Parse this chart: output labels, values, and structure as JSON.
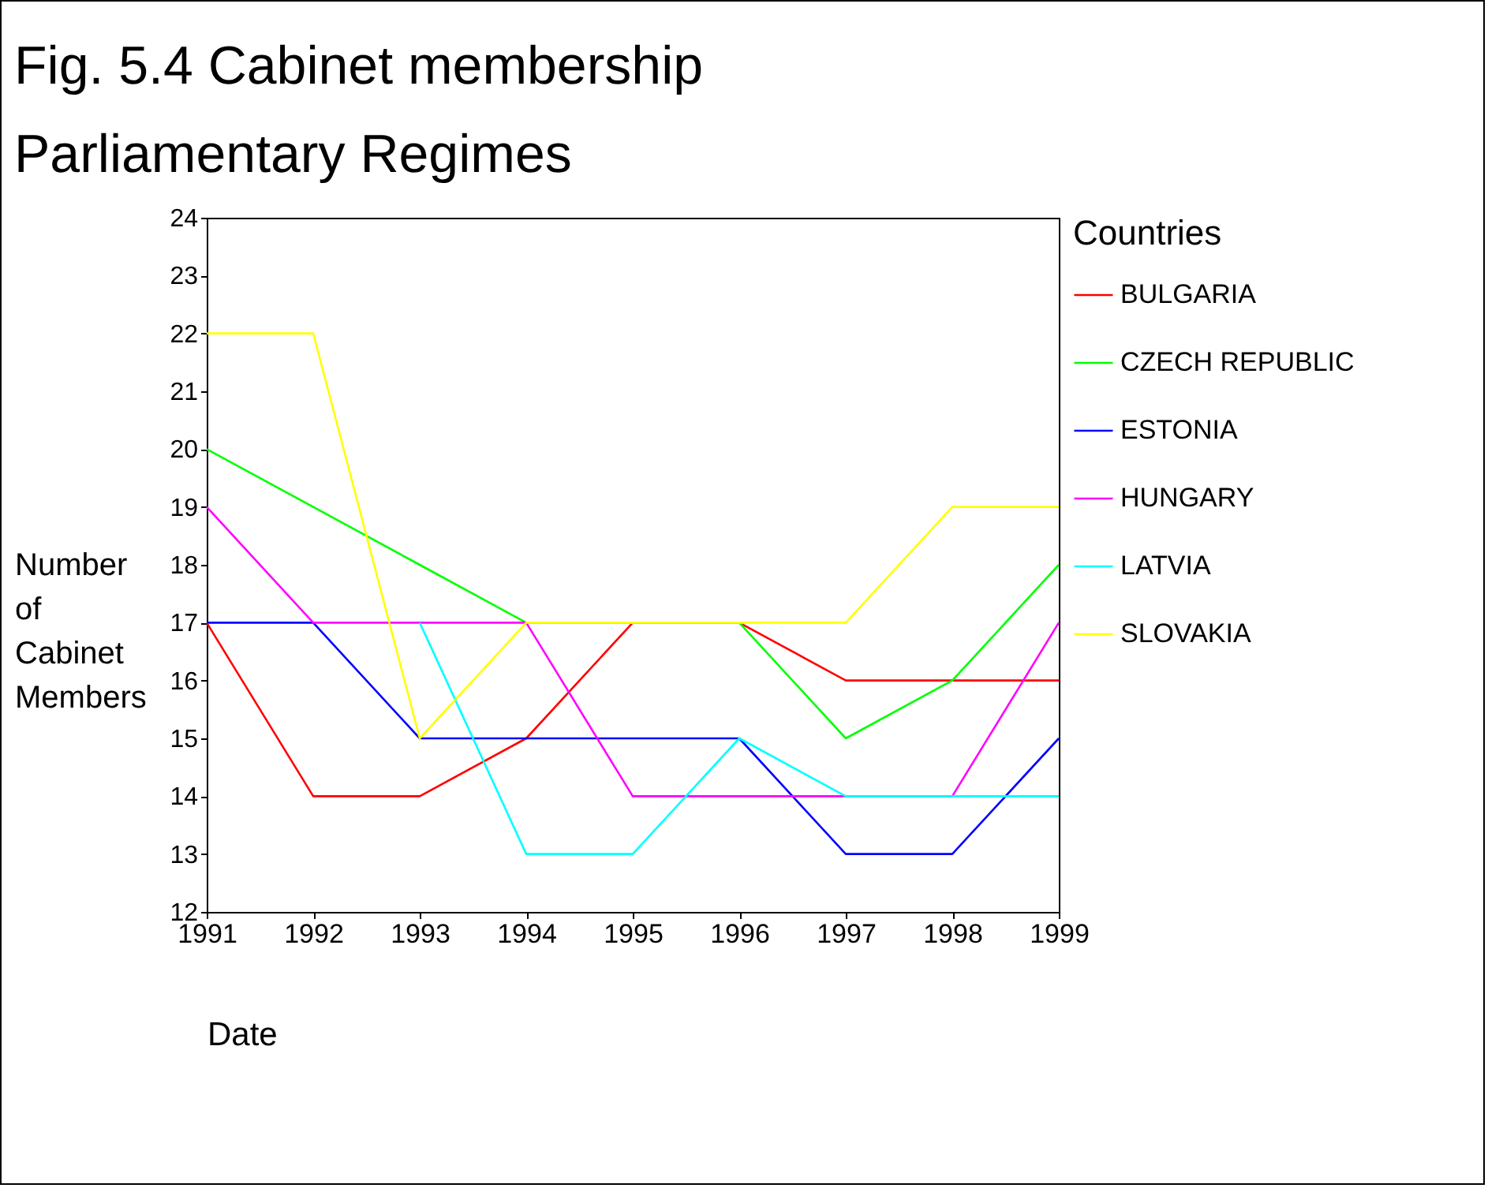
{
  "chart_data": {
    "type": "line",
    "title": "Fig. 5.4 Cabinet membership",
    "subtitle": "Parliamentary Regimes",
    "xlabel": "Date",
    "ylabel": "Number of Cabinet Members",
    "legend_title": "Countries",
    "x": [
      1991,
      1992,
      1993,
      1994,
      1995,
      1996,
      1997,
      1998,
      1999
    ],
    "xlim": [
      1991,
      1999
    ],
    "xticks": [
      1991,
      1992,
      1993,
      1994,
      1995,
      1996,
      1997,
      1998,
      1999
    ],
    "ylim": [
      12,
      24
    ],
    "yticks": [
      12,
      13,
      14,
      15,
      16,
      17,
      18,
      19,
      20,
      21,
      22,
      23,
      24
    ],
    "grid": false,
    "legend": "right",
    "marker": "none",
    "series": [
      {
        "name": "BULGARIA",
        "color": "#ff0000",
        "values": [
          17,
          14,
          14,
          15,
          17,
          17,
          16,
          16,
          16
        ]
      },
      {
        "name": "CZECH REPUBLIC",
        "color": "#00ff00",
        "values": [
          20,
          19,
          18,
          17,
          17,
          17,
          15,
          16,
          18
        ]
      },
      {
        "name": "ESTONIA",
        "color": "#0000ff",
        "values": [
          17,
          17,
          15,
          15,
          15,
          15,
          13,
          13,
          15
        ]
      },
      {
        "name": "HUNGARY",
        "color": "#ff00ff",
        "values": [
          19,
          17,
          17,
          17,
          14,
          14,
          14,
          14,
          17
        ]
      },
      {
        "name": "LATVIA",
        "color": "#00ffff",
        "values": [
          null,
          null,
          17,
          13,
          13,
          15,
          14,
          14,
          14
        ]
      },
      {
        "name": "SLOVAKIA",
        "color": "#ffff00",
        "values": [
          22,
          22,
          15,
          17,
          17,
          17,
          17,
          19,
          19
        ]
      }
    ]
  }
}
